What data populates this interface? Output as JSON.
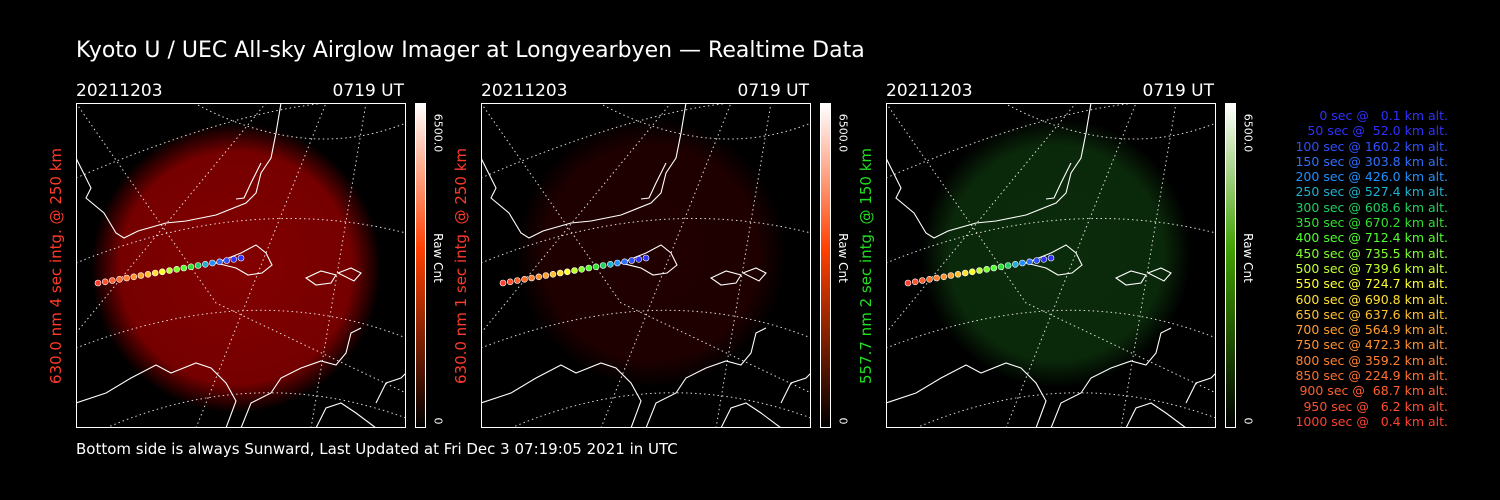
{
  "title": "Kyoto U / UEC All-sky Airglow Imager at Longyearbyen — Realtime Data",
  "footer": "Bottom side is always Sunward, Last Updated at Fri Dec  3 07:19:05 2021 in UTC",
  "panels": [
    {
      "date": "20211203",
      "time": "0719 UT",
      "ylabel": "630.0 nm 4 sec intg. @ 250 km",
      "label_color": "#ff3a2a",
      "glow_color": "#8a0000",
      "glow_intensity": 1.0,
      "cbar_max": "6500.0",
      "cbar_unit": "Raw Cnt",
      "cbar_min": "0",
      "cbar_colors": [
        "#000000",
        "#ff4000",
        "#ffffff"
      ]
    },
    {
      "date": "20211203",
      "time": "0719 UT",
      "ylabel": "630.0 nm 1 sec intg. @ 250 km",
      "label_color": "#ff3a2a",
      "glow_color": "#3a0000",
      "glow_intensity": 0.6,
      "cbar_max": "6500.0",
      "cbar_unit": "Raw Cnt",
      "cbar_min": "0",
      "cbar_colors": [
        "#000000",
        "#ff4000",
        "#ffffff"
      ]
    },
    {
      "date": "20211203",
      "time": "0719 UT",
      "ylabel": "557.7 nm 2 sec intg. @ 150 km",
      "label_color": "#22dd22",
      "glow_color": "#0f3a0f",
      "glow_intensity": 0.8,
      "cbar_max": "6500.0",
      "cbar_unit": "Raw Cnt",
      "cbar_min": "0",
      "cbar_colors": [
        "#000000",
        "#40a000",
        "#ffffff"
      ]
    }
  ],
  "trajectory": {
    "legend": [
      {
        "text": "0 sec @   0.1 km alt.",
        "color": "#3030ff"
      },
      {
        "text": "50 sec @  52.0 km alt.",
        "color": "#3030ff"
      },
      {
        "text": "100 sec @ 160.2 km alt.",
        "color": "#3050ff"
      },
      {
        "text": "150 sec @ 303.8 km alt.",
        "color": "#3070ff"
      },
      {
        "text": "200 sec @ 426.0 km alt.",
        "color": "#2090ff"
      },
      {
        "text": "250 sec @ 527.4 km alt.",
        "color": "#20b0d0"
      },
      {
        "text": "300 sec @ 608.6 km alt.",
        "color": "#20d060"
      },
      {
        "text": "350 sec @ 670.2 km alt.",
        "color": "#30e030"
      },
      {
        "text": "400 sec @ 712.4 km alt.",
        "color": "#50ff30"
      },
      {
        "text": "450 sec @ 735.5 km alt.",
        "color": "#80ff30"
      },
      {
        "text": "500 sec @ 739.6 km alt.",
        "color": "#c0ff30"
      },
      {
        "text": "550 sec @ 724.7 km alt.",
        "color": "#ffff30"
      },
      {
        "text": "600 sec @ 690.8 km alt.",
        "color": "#ffe030"
      },
      {
        "text": "650 sec @ 637.6 km alt.",
        "color": "#ffc030"
      },
      {
        "text": "700 sec @ 564.9 km alt.",
        "color": "#ffa030"
      },
      {
        "text": "750 sec @ 472.3 km alt.",
        "color": "#ff9030"
      },
      {
        "text": "800 sec @ 359.2 km alt.",
        "color": "#ff8030"
      },
      {
        "text": "850 sec @ 224.9 km alt.",
        "color": "#ff7030"
      },
      {
        "text": "900 sec @  68.7 km alt.",
        "color": "#ff6030"
      },
      {
        "text": "950 sec @   6.2 km alt.",
        "color": "#ff5030"
      },
      {
        "text": "1000 sec @   0.4 km alt.",
        "color": "#ff4030"
      }
    ]
  }
}
